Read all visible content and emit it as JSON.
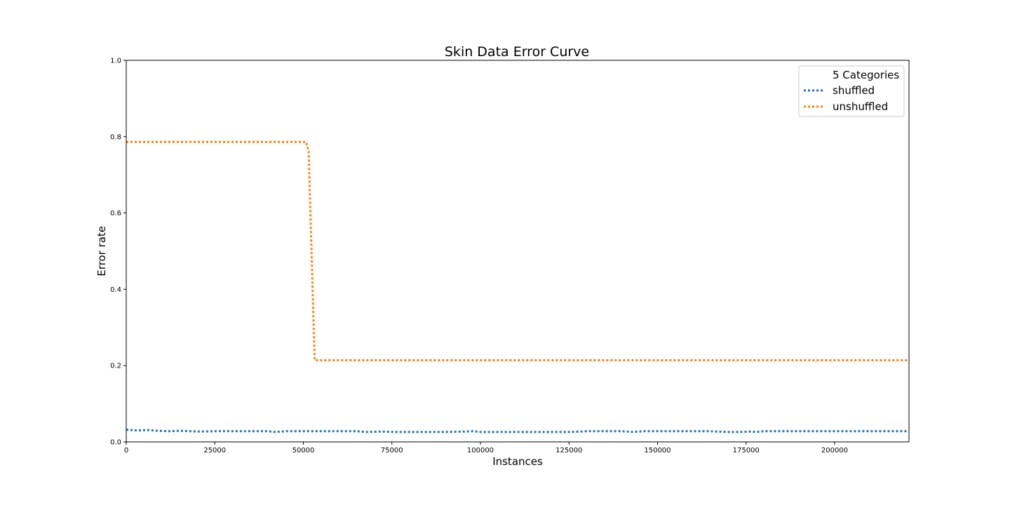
{
  "chart_data": {
    "type": "line",
    "title": "Skin Data Error Curve",
    "xlabel": "Instances",
    "ylabel": "Error rate",
    "xlim": [
      0,
      221000
    ],
    "ylim": [
      0.0,
      1.0
    ],
    "x_ticks": [
      0,
      25000,
      50000,
      75000,
      100000,
      125000,
      150000,
      175000,
      200000
    ],
    "x_tick_labels": [
      "0",
      "25000",
      "50000",
      "75000",
      "100000",
      "125000",
      "150000",
      "175000",
      "200000"
    ],
    "y_ticks": [
      0.0,
      0.2,
      0.4,
      0.6,
      0.8,
      1.0
    ],
    "y_tick_labels": [
      "0.0",
      "0.2",
      "0.4",
      "0.6",
      "0.8",
      "1.0"
    ],
    "grid": false,
    "legend": {
      "title": "5 Categories",
      "placement": "top-right"
    },
    "series": [
      {
        "name": "shuffled",
        "color": "#1f77b4",
        "style": "dotted",
        "x": [
          0,
          3000,
          6000,
          9000,
          12000,
          15000,
          18000,
          21000,
          25000,
          30000,
          35000,
          40000,
          42000,
          45000,
          50000,
          55000,
          60000,
          65000,
          68000,
          72000,
          76000,
          80000,
          85000,
          90000,
          95000,
          98000,
          100000,
          105000,
          110000,
          115000,
          120000,
          125000,
          128000,
          130000,
          135000,
          140000,
          143000,
          146000,
          150000,
          155000,
          160000,
          165000,
          170000,
          173000,
          176000,
          178000,
          180000,
          185000,
          190000,
          195000,
          200000,
          205000,
          210000,
          215000,
          221000
        ],
        "y": [
          0.032,
          0.03,
          0.031,
          0.029,
          0.028,
          0.029,
          0.028,
          0.027,
          0.028,
          0.028,
          0.028,
          0.028,
          0.026,
          0.028,
          0.028,
          0.028,
          0.028,
          0.028,
          0.026,
          0.027,
          0.026,
          0.026,
          0.026,
          0.026,
          0.027,
          0.028,
          0.026,
          0.026,
          0.026,
          0.026,
          0.026,
          0.026,
          0.027,
          0.028,
          0.028,
          0.028,
          0.026,
          0.028,
          0.028,
          0.028,
          0.028,
          0.028,
          0.026,
          0.026,
          0.027,
          0.026,
          0.028,
          0.028,
          0.028,
          0.028,
          0.028,
          0.028,
          0.028,
          0.028,
          0.028
        ]
      },
      {
        "name": "unshuffled",
        "color": "#ff7f0e",
        "style": "dotted",
        "x": [
          0,
          50800,
          51500,
          53200,
          60000,
          100000,
          150000,
          200000,
          221000
        ],
        "y": [
          0.786,
          0.786,
          0.76,
          0.214,
          0.214,
          0.214,
          0.214,
          0.214,
          0.214
        ]
      }
    ]
  }
}
